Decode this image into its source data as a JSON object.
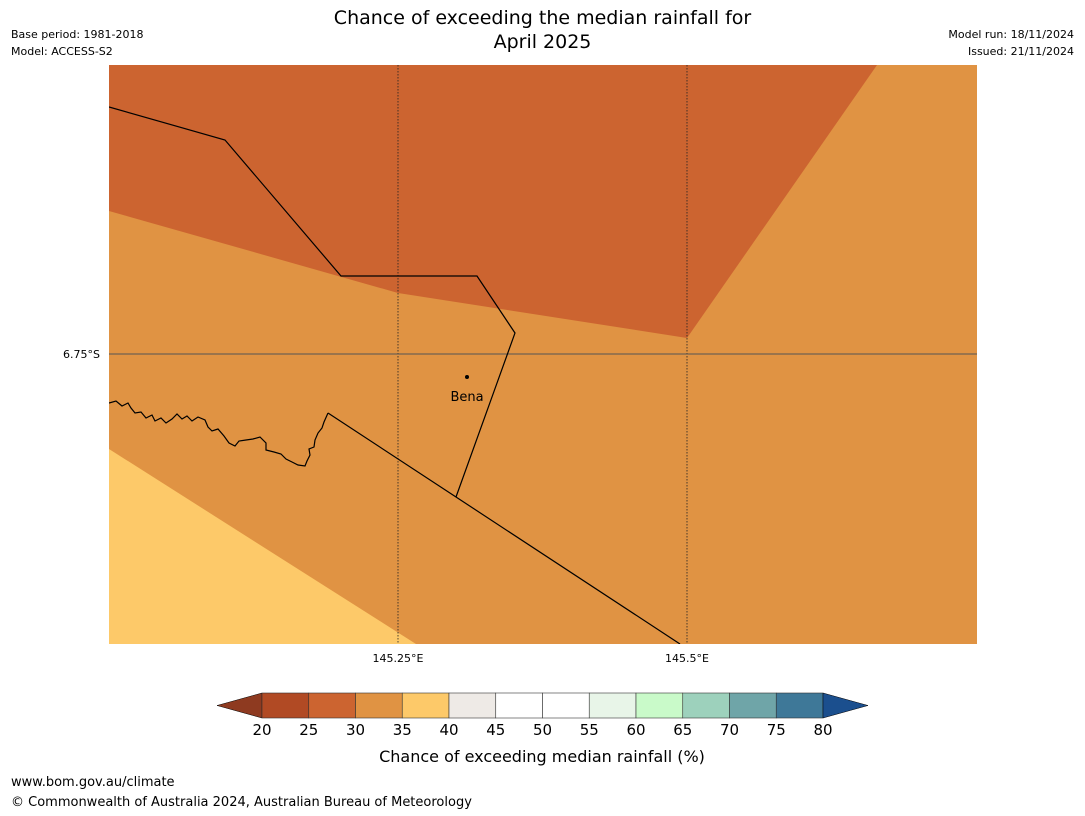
{
  "title": {
    "line1": "Chance of exceeding the median rainfall for",
    "line2": "April 2025"
  },
  "meta": {
    "base_period": "Base period: 1981-2018",
    "model": "Model: ACCESS-S2",
    "model_run": "Model run: 18/11/2024",
    "issued": "Issued: 21/11/2024"
  },
  "map": {
    "lat_label": "6.75°S",
    "lon_labels": [
      "145.25°E",
      "145.5°E"
    ],
    "places": [
      {
        "name": "Bena"
      }
    ]
  },
  "colorbar": {
    "ticks": [
      "20",
      "25",
      "30",
      "35",
      "40",
      "45",
      "50",
      "55",
      "60",
      "65",
      "70",
      "75",
      "80"
    ],
    "colors": [
      "#b14a24",
      "#cc6430",
      "#e09343",
      "#fdc969",
      "#eeeae6",
      "#ffffff",
      "#ffffff",
      "#e8f5e8",
      "#c9fac9",
      "#9dd1bc",
      "#6fa5a8",
      "#3e7898"
    ],
    "under_color": "#8e3a20",
    "over_color": "#1b4f8e",
    "label": "Chance of exceeding median rainfall (%)"
  },
  "footer": {
    "url": "www.bom.gov.au/climate",
    "copyright": "© Commonwealth of Australia 2024, Australian Bureau of Meteorology"
  }
}
